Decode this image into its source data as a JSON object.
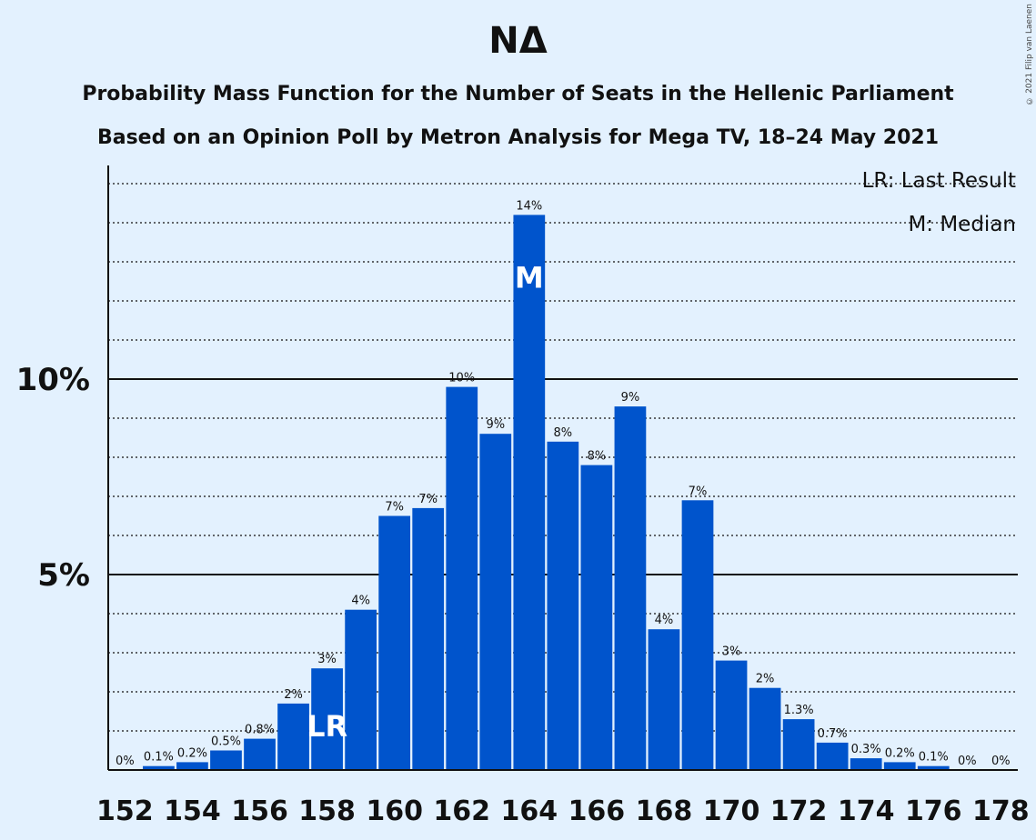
{
  "chart_data": {
    "type": "bar",
    "title": "ΝΔ",
    "subtitle_lines": [
      "Probability Mass Function for the Number of Seats in the Hellenic Parliament",
      "Based on an Opinion Poll by Metron Analysis for Mega TV, 18–24 May 2021"
    ],
    "copyright": "© 2021 Filip van Laenen",
    "legend": {
      "last_result": "LR: Last Result",
      "median": "M: Median",
      "placement": "top-right"
    },
    "x": [
      152,
      153,
      154,
      155,
      156,
      157,
      158,
      159,
      160,
      161,
      162,
      163,
      164,
      165,
      166,
      167,
      168,
      169,
      170,
      171,
      172,
      173,
      174,
      175,
      176,
      177,
      178
    ],
    "values": [
      0,
      0.1,
      0.2,
      0.5,
      0.8,
      1.7,
      2.6,
      4.1,
      6.5,
      6.7,
      9.8,
      8.6,
      14.2,
      8.4,
      7.8,
      9.3,
      3.6,
      6.9,
      2.8,
      2.1,
      1.3,
      0.7,
      0.3,
      0.2,
      0.1,
      0,
      0
    ],
    "data_labels": [
      "0%",
      "0.1%",
      "0.2%",
      "0.5%",
      "0.8%",
      "2%",
      "3%",
      "4%",
      "7%",
      "7%",
      "10%",
      "9%",
      "14%",
      "8%",
      "8%",
      "9%",
      "4%",
      "7%",
      "3%",
      "2%",
      "1.3%",
      "0.7%",
      "0.3%",
      "0.2%",
      "0.1%",
      "0%",
      "0%"
    ],
    "x_tick_labels": [
      "152",
      "154",
      "156",
      "158",
      "160",
      "162",
      "164",
      "166",
      "168",
      "170",
      "172",
      "174",
      "176",
      "178"
    ],
    "y_tick_labels": [
      {
        "value": 5,
        "label": "5%"
      },
      {
        "value": 10,
        "label": "10%"
      }
    ],
    "ylim": [
      0,
      15.5
    ],
    "grid_minor_step": 1,
    "grid": true,
    "last_result_seat": 158,
    "median_seat": 164,
    "last_result_marker": "LR",
    "median_marker": "M",
    "bar_color": "#0054cc",
    "background": "#e3f1fe"
  }
}
